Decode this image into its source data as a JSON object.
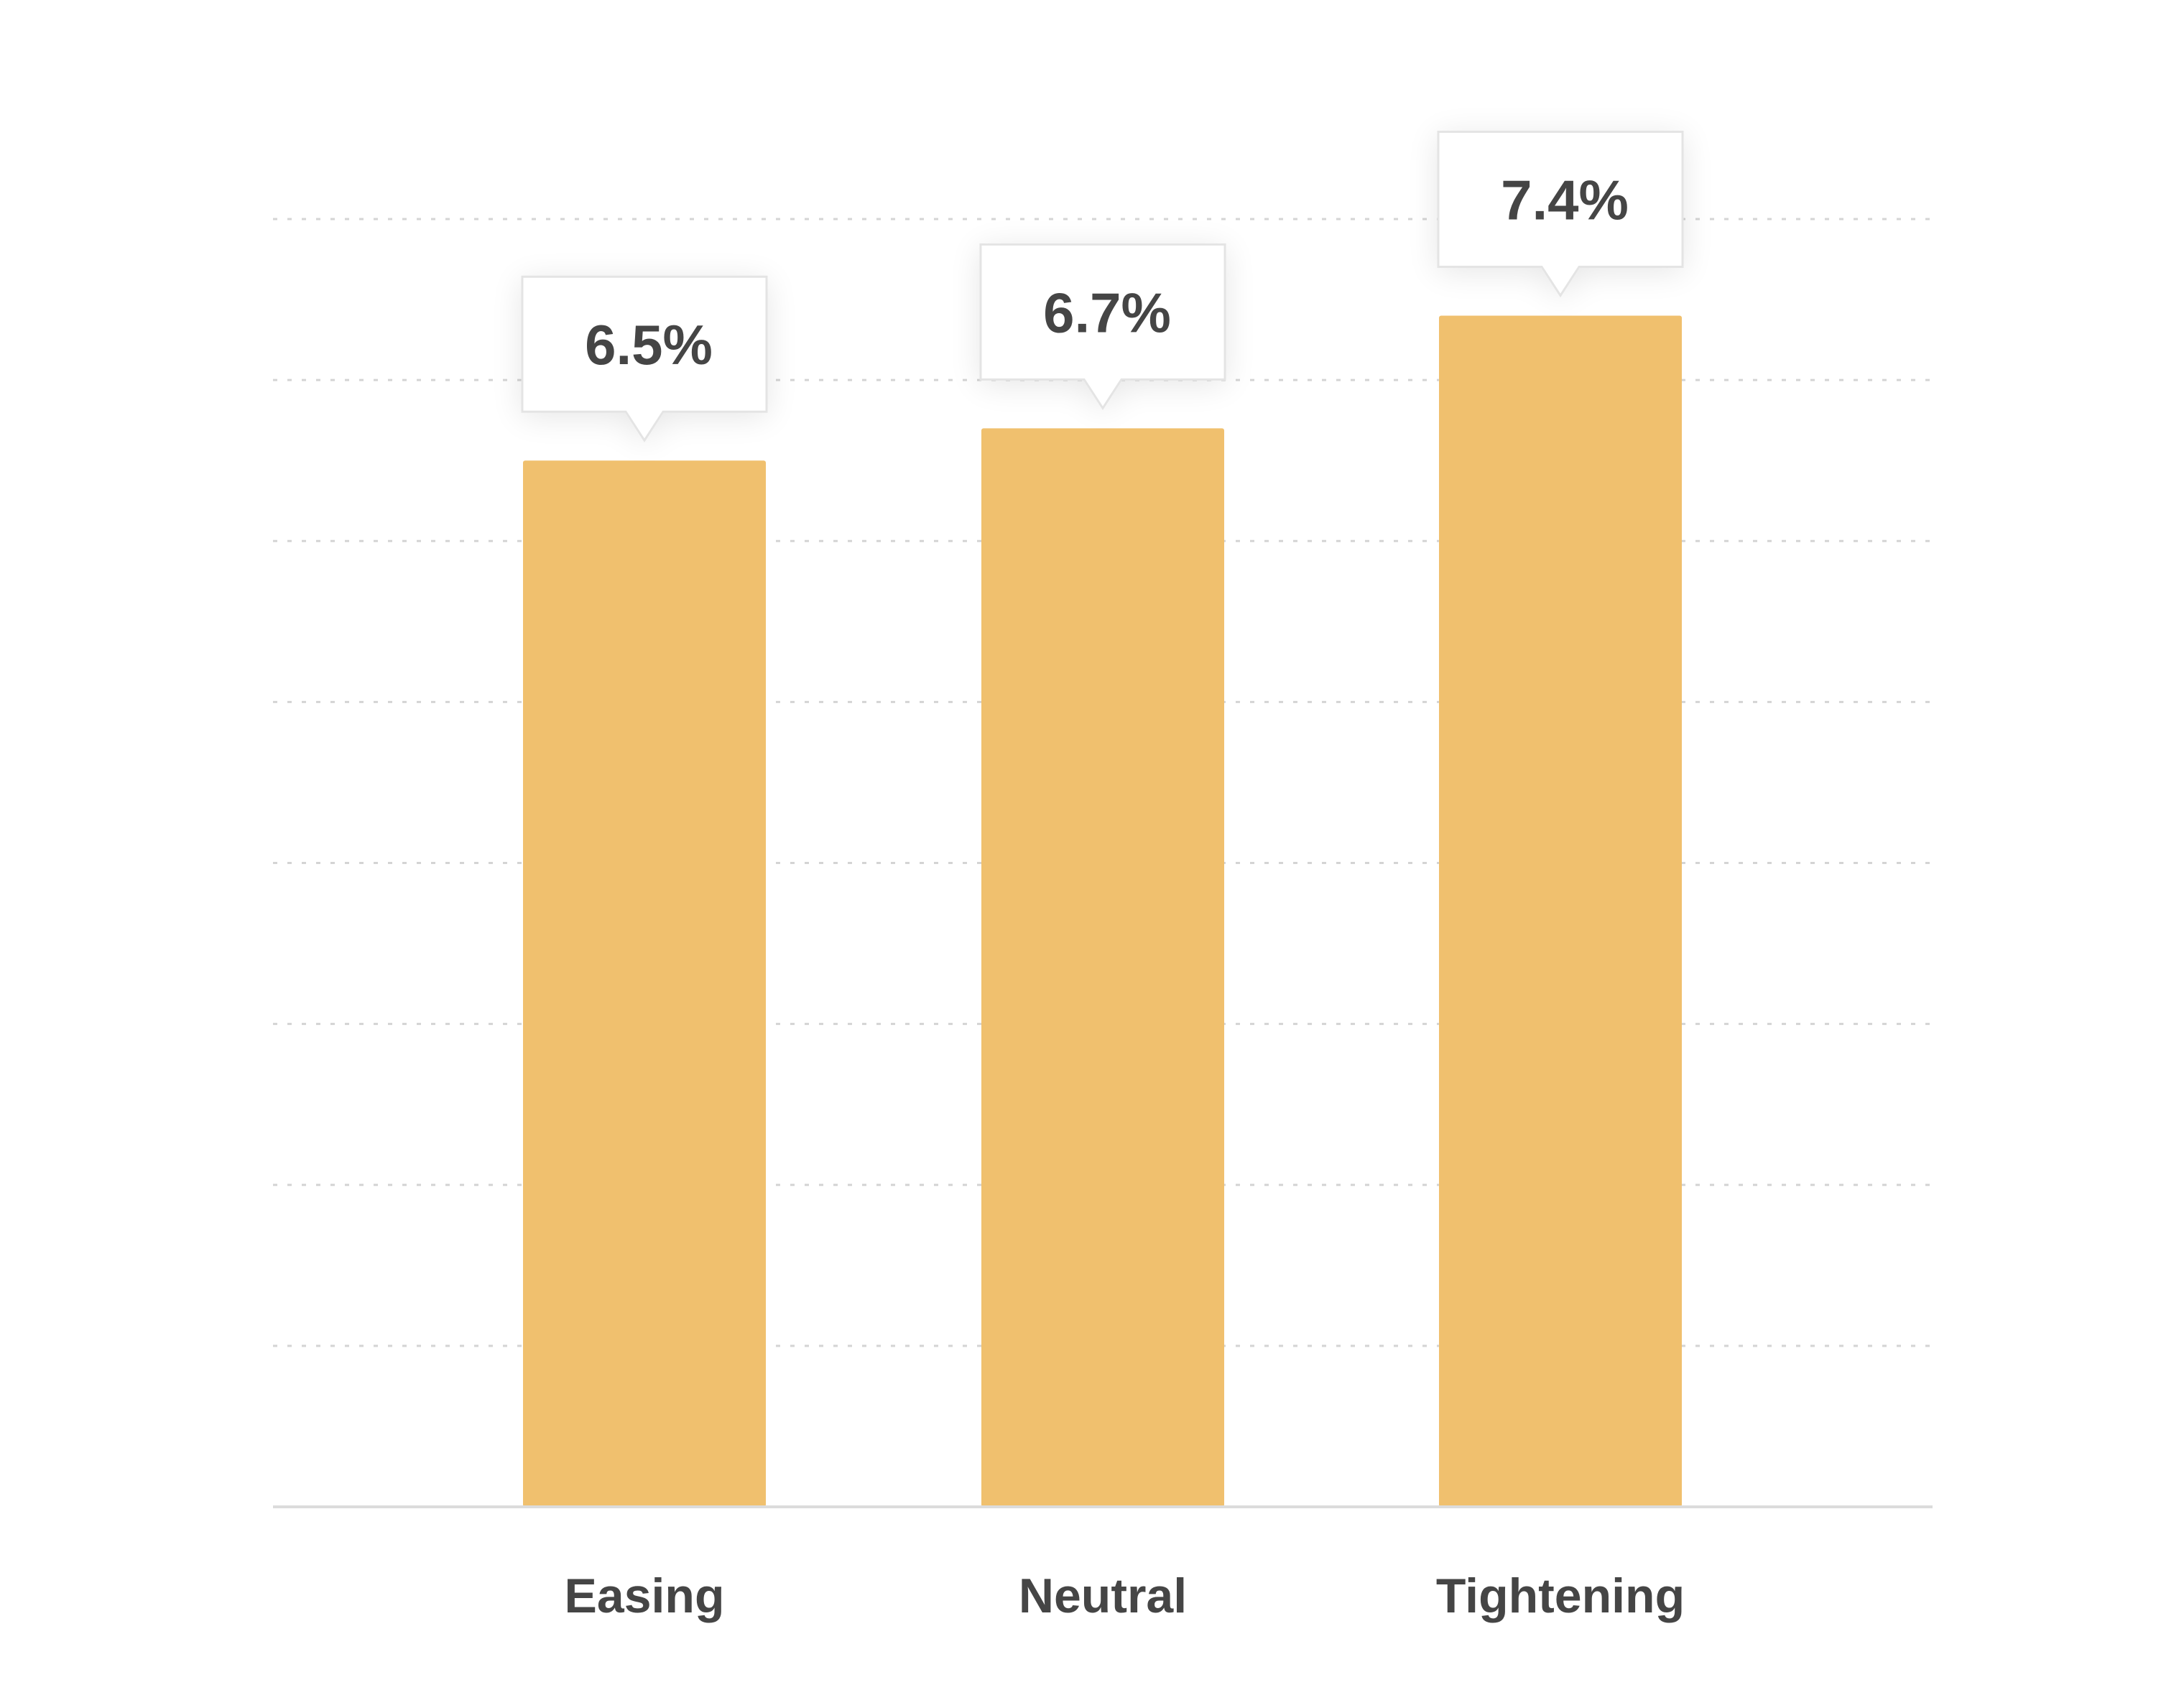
{
  "chart_data": {
    "type": "bar",
    "title": "",
    "xlabel": "",
    "ylabel": "",
    "categories": [
      "Easing",
      "Neutral",
      "Tightening"
    ],
    "values": [
      6.5,
      6.7,
      7.4
    ],
    "data_labels": [
      "6.5%",
      "6.7%",
      "7.4%"
    ],
    "unit": "%",
    "ylim": [
      0,
      8
    ],
    "grid": true,
    "legend": "none",
    "colors": {
      "bar": "#f0c06e",
      "text": "#454545",
      "grid": "#d4d4d4"
    }
  }
}
